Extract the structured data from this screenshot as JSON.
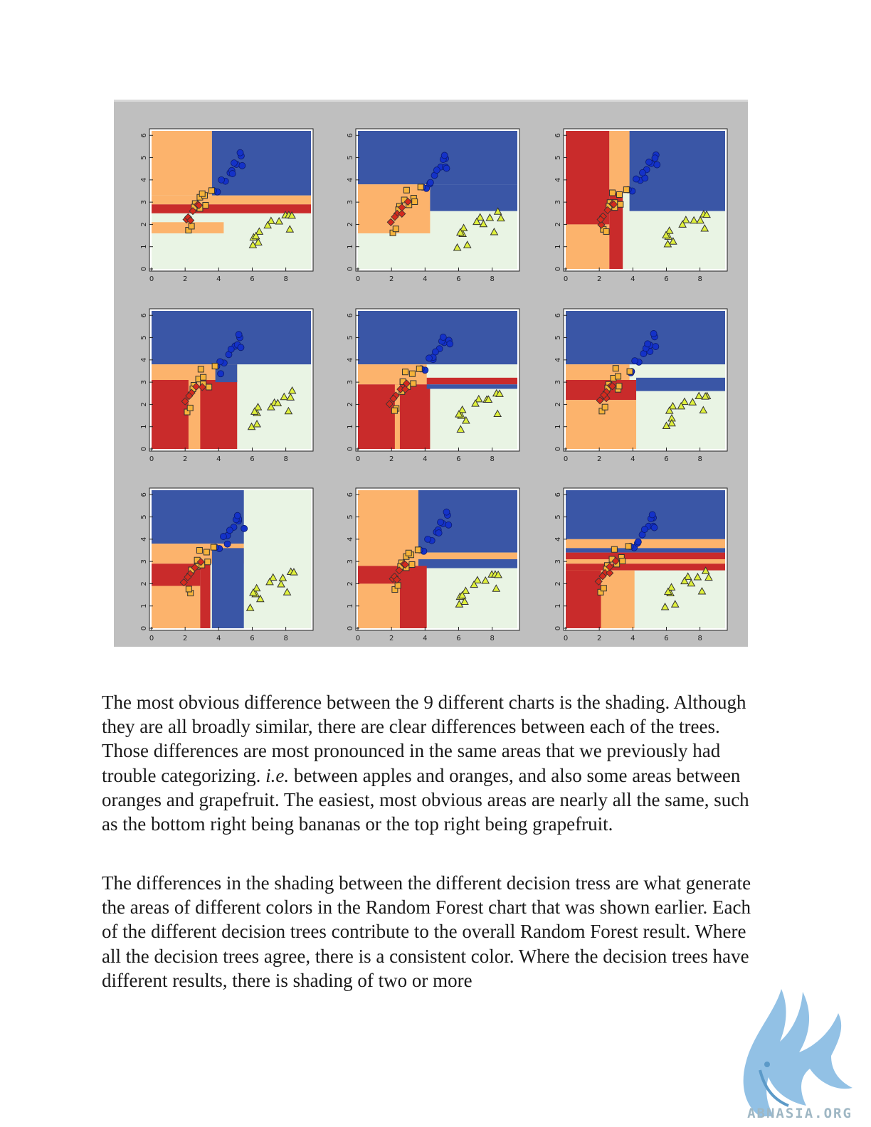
{
  "figure": {
    "colors": {
      "blue": "#3a56a6",
      "orange": "#fcb36c",
      "red": "#c92b2b",
      "light": "#e9f4e4",
      "figure_bg": "#bfbfbf",
      "marker_blue": "#1432c8",
      "marker_orange": "#f6b33a",
      "marker_red": "#d42a1e",
      "marker_yellow": "#dff03c"
    },
    "x_ticks": [
      "0",
      "2",
      "4",
      "6",
      "8"
    ],
    "y_ticks": [
      "0",
      "1",
      "2",
      "3",
      "4",
      "5",
      "6"
    ]
  },
  "chart_data": [
    {
      "type": "scatter",
      "panel": 1,
      "xlim": [
        0,
        9.5
      ],
      "ylim": [
        0,
        6.2
      ],
      "regions": [
        {
          "class": "orange",
          "x": [
            0,
            3.6
          ],
          "y": [
            3.3,
            6.2
          ]
        },
        {
          "class": "blue",
          "x": [
            3.6,
            9.5
          ],
          "y": [
            3.3,
            6.2
          ]
        },
        {
          "class": "orange",
          "x": [
            0,
            9.5
          ],
          "y": [
            2.9,
            3.3
          ]
        },
        {
          "class": "red",
          "x": [
            0,
            9.5
          ],
          "y": [
            2.5,
            2.9
          ]
        },
        {
          "class": "orange",
          "x": [
            0,
            4.3
          ],
          "y": [
            1.6,
            2.1
          ]
        }
      ]
    },
    {
      "type": "scatter",
      "panel": 2,
      "xlim": [
        0,
        9.5
      ],
      "ylim": [
        0,
        6.2
      ],
      "regions": [
        {
          "class": "blue",
          "x": [
            0,
            9.5
          ],
          "y": [
            3.8,
            6.2
          ]
        },
        {
          "class": "orange",
          "x": [
            0,
            4.3
          ],
          "y": [
            1.6,
            3.8
          ]
        },
        {
          "class": "blue",
          "x": [
            4.3,
            9.5
          ],
          "y": [
            2.6,
            3.8
          ]
        }
      ]
    },
    {
      "type": "scatter",
      "panel": 3,
      "xlim": [
        0,
        9.5
      ],
      "ylim": [
        0,
        6.2
      ],
      "regions": [
        {
          "class": "red",
          "x": [
            0,
            2.6
          ],
          "y": [
            2.0,
            6.2
          ]
        },
        {
          "class": "orange",
          "x": [
            0,
            2.6
          ],
          "y": [
            0,
            2.0
          ]
        },
        {
          "class": "orange",
          "x": [
            2.6,
            3.8
          ],
          "y": [
            3.4,
            6.2
          ]
        },
        {
          "class": "red",
          "x": [
            2.6,
            3.4
          ],
          "y": [
            0,
            3.4
          ]
        },
        {
          "class": "blue",
          "x": [
            3.8,
            9.5
          ],
          "y": [
            2.6,
            6.2
          ]
        }
      ]
    },
    {
      "type": "scatter",
      "panel": 4,
      "xlim": [
        0,
        9.5
      ],
      "ylim": [
        0,
        6.2
      ],
      "regions": [
        {
          "class": "blue",
          "x": [
            0,
            9.5
          ],
          "y": [
            3.8,
            6.2
          ]
        },
        {
          "class": "orange",
          "x": [
            0,
            5.1
          ],
          "y": [
            3.1,
            3.8
          ]
        },
        {
          "class": "red",
          "x": [
            0,
            5.1
          ],
          "y": [
            0,
            3.1
          ]
        },
        {
          "class": "orange",
          "x": [
            2.2,
            2.9
          ],
          "y": [
            0,
            3.1
          ]
        },
        {
          "class": "blue",
          "x": [
            3.8,
            5.1
          ],
          "y": [
            3.0,
            3.8
          ]
        }
      ]
    },
    {
      "type": "scatter",
      "panel": 5,
      "xlim": [
        0,
        9.5
      ],
      "ylim": [
        0,
        6.2
      ],
      "regions": [
        {
          "class": "blue",
          "x": [
            0,
            9.5
          ],
          "y": [
            3.8,
            6.2
          ]
        },
        {
          "class": "orange",
          "x": [
            0,
            4.1
          ],
          "y": [
            2.9,
            3.8
          ]
        },
        {
          "class": "red",
          "x": [
            0,
            4.3
          ],
          "y": [
            0,
            2.9
          ]
        },
        {
          "class": "orange",
          "x": [
            2.2,
            2.5
          ],
          "y": [
            0,
            2.9
          ]
        },
        {
          "class": "red",
          "x": [
            4.1,
            9.5
          ],
          "y": [
            2.9,
            3.2
          ]
        },
        {
          "class": "blue",
          "x": [
            4.1,
            9.5
          ],
          "y": [
            2.7,
            2.9
          ]
        }
      ]
    },
    {
      "type": "scatter",
      "panel": 6,
      "xlim": [
        0,
        9.5
      ],
      "ylim": [
        0,
        6.2
      ],
      "regions": [
        {
          "class": "blue",
          "x": [
            0,
            9.5
          ],
          "y": [
            3.8,
            6.2
          ]
        },
        {
          "class": "orange",
          "x": [
            0,
            3.8
          ],
          "y": [
            3.1,
            3.8
          ]
        },
        {
          "class": "red",
          "x": [
            0,
            4.2
          ],
          "y": [
            2.2,
            3.1
          ]
        },
        {
          "class": "orange",
          "x": [
            0,
            4.2
          ],
          "y": [
            0,
            2.2
          ]
        },
        {
          "class": "blue",
          "x": [
            4.2,
            9.5
          ],
          "y": [
            2.6,
            3.2
          ]
        }
      ]
    },
    {
      "type": "scatter",
      "panel": 7,
      "xlim": [
        0,
        9.5
      ],
      "ylim": [
        0,
        6.2
      ],
      "regions": [
        {
          "class": "blue",
          "x": [
            0,
            5.5
          ],
          "y": [
            3.8,
            6.2
          ]
        },
        {
          "class": "orange",
          "x": [
            0,
            5.5
          ],
          "y": [
            2.9,
            3.8
          ]
        },
        {
          "class": "red",
          "x": [
            0,
            2.9
          ],
          "y": [
            1.9,
            2.9
          ]
        },
        {
          "class": "orange",
          "x": [
            0,
            2.9
          ],
          "y": [
            0,
            1.9
          ]
        },
        {
          "class": "red",
          "x": [
            2.9,
            3.5
          ],
          "y": [
            0,
            2.9
          ]
        },
        {
          "class": "blue",
          "x": [
            3.6,
            5.5
          ],
          "y": [
            0,
            3.6
          ]
        }
      ]
    },
    {
      "type": "scatter",
      "panel": 8,
      "xlim": [
        0,
        9.5
      ],
      "ylim": [
        0,
        6.2
      ],
      "regions": [
        {
          "class": "orange",
          "x": [
            0,
            3.6
          ],
          "y": [
            2.8,
            6.2
          ]
        },
        {
          "class": "blue",
          "x": [
            3.6,
            9.5
          ],
          "y": [
            3.4,
            6.2
          ]
        },
        {
          "class": "orange",
          "x": [
            3.6,
            9.5
          ],
          "y": [
            3.1,
            3.4
          ]
        },
        {
          "class": "blue",
          "x": [
            3.6,
            9.5
          ],
          "y": [
            2.7,
            3.1
          ]
        },
        {
          "class": "red",
          "x": [
            0,
            2.5
          ],
          "y": [
            2.0,
            2.8
          ]
        },
        {
          "class": "orange",
          "x": [
            0,
            2.5
          ],
          "y": [
            0,
            2.0
          ]
        },
        {
          "class": "red",
          "x": [
            2.5,
            4.1
          ],
          "y": [
            0,
            2.8
          ]
        }
      ]
    },
    {
      "type": "scatter",
      "panel": 9,
      "xlim": [
        0,
        9.5
      ],
      "ylim": [
        0,
        6.2
      ],
      "regions": [
        {
          "class": "blue",
          "x": [
            0,
            9.5
          ],
          "y": [
            4.0,
            6.2
          ]
        },
        {
          "class": "orange",
          "x": [
            0,
            9.5
          ],
          "y": [
            3.6,
            4.0
          ]
        },
        {
          "class": "blue",
          "x": [
            0,
            9.5
          ],
          "y": [
            3.4,
            3.6
          ]
        },
        {
          "class": "red",
          "x": [
            0,
            9.5
          ],
          "y": [
            3.1,
            3.4
          ]
        },
        {
          "class": "orange",
          "x": [
            0,
            9.5
          ],
          "y": [
            2.9,
            3.1
          ]
        },
        {
          "class": "red",
          "x": [
            0,
            9.5
          ],
          "y": [
            2.6,
            2.9
          ]
        },
        {
          "class": "orange",
          "x": [
            0,
            4.1
          ],
          "y": [
            0,
            2.6
          ]
        },
        {
          "class": "red",
          "x": [
            0,
            2.1
          ],
          "y": [
            0,
            2.6
          ]
        }
      ]
    }
  ],
  "points": {
    "blue_circles": [
      [
        4.0,
        3.5
      ],
      [
        4.4,
        3.9
      ],
      [
        4.6,
        4.2
      ],
      [
        4.9,
        4.5
      ],
      [
        5.1,
        4.7
      ],
      [
        5.3,
        5.0
      ],
      [
        4.7,
        4.4
      ],
      [
        5.0,
        4.8
      ],
      [
        5.4,
        4.6
      ],
      [
        5.2,
        5.1
      ],
      [
        3.8,
        3.6
      ],
      [
        4.2,
        4.0
      ]
    ],
    "orange_squares": [
      [
        2.6,
        2.9
      ],
      [
        2.8,
        3.1
      ],
      [
        3.0,
        2.8
      ],
      [
        3.2,
        3.3
      ],
      [
        2.5,
        2.7
      ],
      [
        2.9,
        3.5
      ],
      [
        3.3,
        2.9
      ],
      [
        2.2,
        1.7
      ],
      [
        2.3,
        1.8
      ],
      [
        3.7,
        3.6
      ]
    ],
    "red_diamonds": [
      [
        2.0,
        2.1
      ],
      [
        2.3,
        2.4
      ],
      [
        2.5,
        2.6
      ],
      [
        2.7,
        2.8
      ],
      [
        2.2,
        2.3
      ],
      [
        2.9,
        2.9
      ]
    ],
    "yellow_triangles": [
      [
        6.2,
        1.5
      ],
      [
        6.4,
        1.2
      ],
      [
        6.0,
        1.0
      ],
      [
        6.3,
        1.8
      ],
      [
        7.2,
        2.2
      ],
      [
        7.6,
        2.1
      ],
      [
        7.9,
        2.3
      ],
      [
        8.3,
        2.5
      ],
      [
        8.4,
        2.4
      ],
      [
        8.2,
        1.7
      ],
      [
        6.1,
        1.6
      ],
      [
        7.0,
        2.0
      ]
    ]
  },
  "text": {
    "p1_a": "The most obvious difference between the 9 different charts is the shading.  Although they are all broadly similar, there are clear differences between each of the trees.  Those differences are most pronounced in the same areas that we previously had trouble categorizing.  ",
    "p1_ie": "i.e.",
    "p1_b": " between apples and oranges, and also some areas between oranges and grapefruit. The easiest, most obvious areas are nearly all the same, such as the bottom right being bananas or the top right being grapefruit.",
    "p2": "The differences in the shading between the different decision tress are what generate the areas of different colors in the Random Forest chart that was shown earlier.  Each of the different decision trees contribute to the overall Random Forest result.  Where all the decision trees agree, there is a consistent color. Where the decision trees have different results, there is shading of two or more",
    "logo": "ABNASIA.ORG"
  }
}
